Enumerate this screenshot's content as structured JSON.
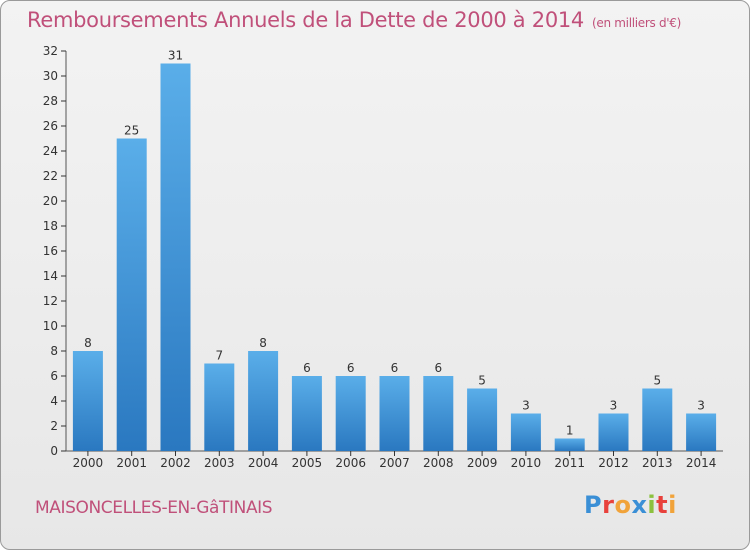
{
  "header": {
    "title": "Remboursements Annuels de la Dette de 2000 à 2014",
    "unit": "(en milliers d'€)"
  },
  "footer": {
    "commune": "MAISONCELLES-EN-GâTINAIS",
    "logo_letters": [
      {
        "ch": "P",
        "color": "#3a8fd6"
      },
      {
        "ch": "r",
        "color": "#e8413c"
      },
      {
        "ch": "o",
        "color": "#f1a33a"
      },
      {
        "ch": "x",
        "color": "#3a8fd6"
      },
      {
        "ch": "i",
        "color": "#8cc13f"
      },
      {
        "ch": "t",
        "color": "#e8413c"
      },
      {
        "ch": "i",
        "color": "#f1a33a"
      }
    ]
  },
  "colors": {
    "title": "#c0507a",
    "bar_top": "#5aaee9",
    "bar_bottom": "#2a78c0",
    "axis": "#555555",
    "grid_tick": "#333333"
  },
  "chart_data": {
    "type": "bar",
    "categories": [
      "2000",
      "2001",
      "2002",
      "2003",
      "2004",
      "2005",
      "2006",
      "2007",
      "2008",
      "2009",
      "2010",
      "2011",
      "2012",
      "2013",
      "2014"
    ],
    "values": [
      8,
      25,
      31,
      7,
      8,
      6,
      6,
      6,
      6,
      5,
      3,
      1,
      3,
      5,
      3
    ],
    "ylim": [
      0,
      32
    ],
    "yticks": [
      0,
      2,
      4,
      6,
      8,
      10,
      12,
      14,
      16,
      18,
      20,
      22,
      24,
      26,
      28,
      30,
      32
    ],
    "grid": false,
    "legend": "none"
  }
}
